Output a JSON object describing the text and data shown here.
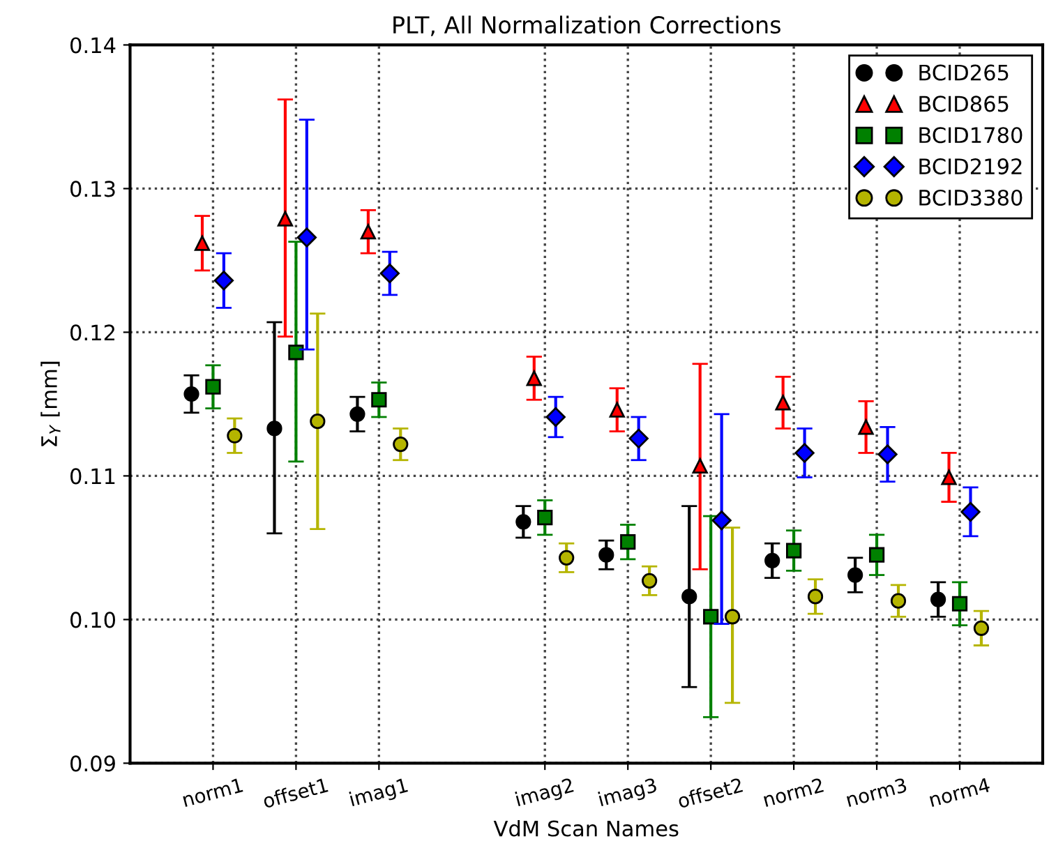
{
  "chart_data": {
    "type": "scatter",
    "title": "PLT, All Normalization Corrections",
    "xlabel": "VdM Scan Names",
    "ylabel": "Σ$_{Y}$ [mm]",
    "categories": [
      "norm1",
      "offset1",
      "imag1",
      null,
      "imag2",
      "imag3",
      "offset2",
      "norm2",
      "norm3",
      "norm4"
    ],
    "ylim": [
      0.09,
      0.14
    ],
    "yticks": [
      {
        "value": 0.09,
        "label": "0.09"
      },
      {
        "value": 0.1,
        "label": "0.10"
      },
      {
        "value": 0.11,
        "label": "0.11"
      },
      {
        "value": 0.12,
        "label": "0.12"
      },
      {
        "value": 0.13,
        "label": "0.13"
      },
      {
        "value": 0.14,
        "label": "0.14"
      }
    ],
    "grid": true,
    "legend": "top right",
    "series": [
      {
        "name": "BCID265",
        "color": "#000000",
        "marker": "circle",
        "values": [
          0.1157,
          0.1133,
          0.1143,
          null,
          0.1068,
          0.1045,
          0.1016,
          0.1041,
          0.1031,
          0.1014
        ],
        "errors": [
          0.0013,
          [
            0.106,
            0.1207
          ],
          0.0012,
          null,
          0.0011,
          0.001,
          [
            0.0953,
            0.1079
          ],
          0.0012,
          0.0012,
          0.0012
        ]
      },
      {
        "name": "BCID865",
        "color": "#ff0000",
        "marker": "triangle",
        "values": [
          0.1262,
          0.1279,
          0.127,
          null,
          0.1168,
          0.1146,
          0.1107,
          0.1151,
          0.1134,
          0.1099
        ],
        "errors": [
          0.0019,
          [
            0.1197,
            0.1362
          ],
          0.0015,
          null,
          0.0015,
          0.0015,
          [
            0.1035,
            0.1178
          ],
          0.0018,
          0.0018,
          0.0017
        ]
      },
      {
        "name": "BCID1780",
        "color": "#008000",
        "marker": "square",
        "values": [
          0.1162,
          0.1186,
          0.1153,
          null,
          0.1071,
          0.1054,
          0.1002,
          0.1048,
          0.1045,
          0.1011
        ],
        "errors": [
          0.0015,
          [
            0.111,
            0.1263
          ],
          0.0012,
          null,
          0.0012,
          0.0012,
          [
            0.0932,
            0.1072
          ],
          0.0014,
          0.0014,
          0.0015
        ]
      },
      {
        "name": "BCID2192",
        "color": "#0000ff",
        "marker": "diamond",
        "values": [
          0.1236,
          0.1266,
          0.1241,
          null,
          0.1141,
          0.1126,
          0.1069,
          0.1116,
          0.1115,
          0.1075
        ],
        "errors": [
          0.0019,
          [
            0.1188,
            0.1348
          ],
          0.0015,
          null,
          0.0014,
          0.0015,
          [
            0.0997,
            0.1143
          ],
          0.0017,
          0.0019,
          0.0017
        ]
      },
      {
        "name": "BCID3380",
        "color": "#b5b500",
        "marker": "circle",
        "values": [
          0.1128,
          0.1138,
          0.1122,
          null,
          0.1043,
          0.1027,
          0.1002,
          0.1016,
          0.1013,
          0.0994
        ],
        "errors": [
          0.0012,
          [
            0.1063,
            0.1213
          ],
          0.0011,
          null,
          0.001,
          0.001,
          [
            0.0942,
            0.1064
          ],
          0.0012,
          0.0011,
          0.0012
        ]
      }
    ]
  }
}
